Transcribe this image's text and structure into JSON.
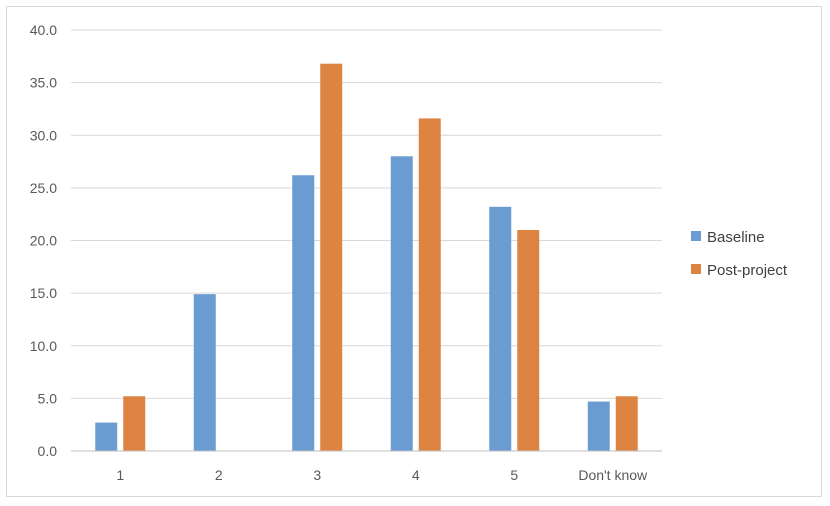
{
  "chart_data": {
    "type": "bar",
    "title": "",
    "xlabel": "",
    "ylabel": "",
    "categories": [
      "1",
      "2",
      "3",
      "4",
      "5",
      "Don't know"
    ],
    "series": [
      {
        "name": "Baseline",
        "color": "#6a9bd1",
        "values": [
          2.7,
          14.9,
          26.2,
          28.0,
          23.2,
          4.7
        ]
      },
      {
        "name": "Post-project",
        "color": "#dd8443",
        "values": [
          5.2,
          0.0,
          36.8,
          31.6,
          21.0,
          5.2
        ]
      }
    ],
    "ylim": [
      0,
      40
    ],
    "yticks": [
      "0.0",
      "5.0",
      "10.0",
      "15.0",
      "20.0",
      "25.0",
      "30.0",
      "35.0",
      "40.0"
    ],
    "grid": true,
    "legend_position": "right"
  }
}
